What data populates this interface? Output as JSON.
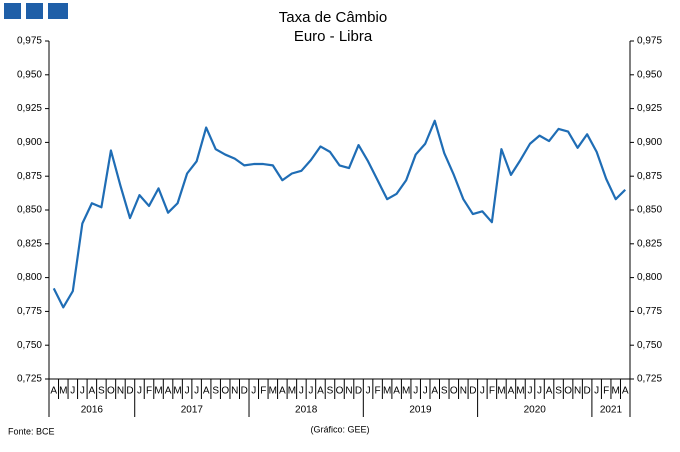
{
  "chart_data": {
    "type": "line",
    "title": "Taxa de Câmbio",
    "subtitle": "Euro - Libra",
    "source": "Fonte: BCE",
    "credit": "(Gráfico: GEE)",
    "color": "#1f6db5",
    "groups": [
      {
        "name": "2016",
        "months": [
          "A",
          "M",
          "J",
          "J",
          "A",
          "S",
          "O",
          "N",
          "D"
        ]
      },
      {
        "name": "2017",
        "months": [
          "J",
          "F",
          "M",
          "A",
          "M",
          "J",
          "J",
          "A",
          "S",
          "O",
          "N",
          "D"
        ]
      },
      {
        "name": "2018",
        "months": [
          "J",
          "F",
          "M",
          "A",
          "M",
          "J",
          "J",
          "A",
          "S",
          "O",
          "N",
          "D"
        ]
      },
      {
        "name": "2019",
        "months": [
          "J",
          "F",
          "M",
          "A",
          "M",
          "J",
          "J",
          "A",
          "S",
          "O",
          "N",
          "D"
        ]
      },
      {
        "name": "2020",
        "months": [
          "J",
          "F",
          "M",
          "A",
          "M",
          "J",
          "J",
          "A",
          "S",
          "O",
          "N",
          "D"
        ]
      },
      {
        "name": "2021",
        "months": [
          "J",
          "F",
          "M",
          "A"
        ]
      }
    ],
    "values": [
      0.792,
      0.778,
      0.79,
      0.84,
      0.855,
      0.852,
      0.894,
      0.868,
      0.844,
      0.861,
      0.853,
      0.866,
      0.848,
      0.855,
      0.877,
      0.886,
      0.911,
      0.895,
      0.891,
      0.888,
      0.883,
      0.884,
      0.884,
      0.883,
      0.872,
      0.877,
      0.879,
      0.887,
      0.897,
      0.893,
      0.883,
      0.881,
      0.898,
      0.886,
      0.872,
      0.858,
      0.862,
      0.872,
      0.891,
      0.899,
      0.916,
      0.892,
      0.876,
      0.858,
      0.847,
      0.849,
      0.841,
      0.895,
      0.876,
      0.887,
      0.899,
      0.905,
      0.901,
      0.91,
      0.908,
      0.896,
      0.906,
      0.893,
      0.873,
      0.858,
      0.865
    ],
    "ylim": [
      0.725,
      0.975
    ],
    "yticks": [
      {
        "value": 0.725,
        "label": "0,725"
      },
      {
        "value": 0.75,
        "label": "0,750"
      },
      {
        "value": 0.775,
        "label": "0,775"
      },
      {
        "value": 0.8,
        "label": "0,800"
      },
      {
        "value": 0.825,
        "label": "0,825"
      },
      {
        "value": 0.85,
        "label": "0,850"
      },
      {
        "value": 0.875,
        "label": "0,875"
      },
      {
        "value": 0.9,
        "label": "0,900"
      },
      {
        "value": 0.925,
        "label": "0,925"
      },
      {
        "value": 0.95,
        "label": "0,950"
      },
      {
        "value": 0.975,
        "label": "0,975"
      }
    ]
  }
}
